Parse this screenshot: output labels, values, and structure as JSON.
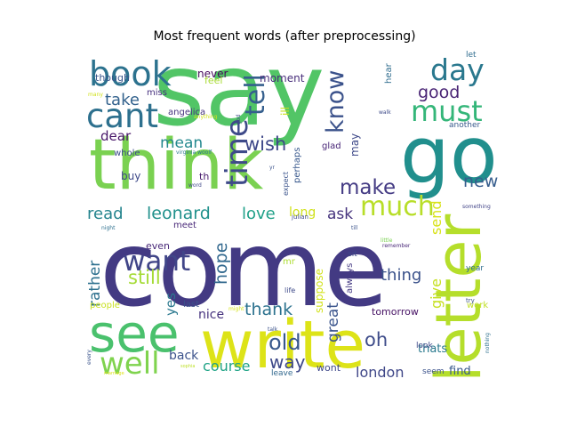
{
  "chart_data": {
    "type": "wordcloud",
    "title": "Most frequent words (after preprocessing)",
    "words": [
      {
        "text": "say",
        "color": "#52c566"
      },
      {
        "text": "come",
        "color": "#433a83"
      },
      {
        "text": "think",
        "color": "#7ad151"
      },
      {
        "text": "go",
        "color": "#218f8d"
      },
      {
        "text": "write",
        "color": "#dde318"
      },
      {
        "text": "letter",
        "color": "#b5de2b"
      },
      {
        "text": "see",
        "color": "#4ac16d"
      },
      {
        "text": "book",
        "color": "#2c728e"
      },
      {
        "text": "cant",
        "color": "#2d708e"
      },
      {
        "text": "know",
        "color": "#3b528b"
      },
      {
        "text": "day",
        "color": "#2a788e"
      },
      {
        "text": "must",
        "color": "#34b679"
      },
      {
        "text": "time",
        "color": "#3e4a89"
      },
      {
        "text": "tell",
        "color": "#355f8d"
      },
      {
        "text": "much",
        "color": "#b8de29"
      },
      {
        "text": "make",
        "color": "#443b84"
      },
      {
        "text": "want",
        "color": "#404588"
      },
      {
        "text": "well",
        "color": "#7fd34e"
      },
      {
        "text": "good",
        "color": "#482374"
      },
      {
        "text": "mean",
        "color": "#23888e"
      },
      {
        "text": "wish",
        "color": "#3f4889"
      },
      {
        "text": "take",
        "color": "#33628d"
      },
      {
        "text": "leonard",
        "color": "#21918c"
      },
      {
        "text": "read",
        "color": "#25848e"
      },
      {
        "text": "love",
        "color": "#1fa088"
      },
      {
        "text": "new",
        "color": "#365d8d"
      },
      {
        "text": "ask",
        "color": "#45337d"
      },
      {
        "text": "hope",
        "color": "#31688e"
      },
      {
        "text": "still",
        "color": "#a5db36"
      },
      {
        "text": "old",
        "color": "#38588c"
      },
      {
        "text": "thank",
        "color": "#2c728e"
      },
      {
        "text": "oh",
        "color": "#3e4c8a"
      },
      {
        "text": "way",
        "color": "#3e4989"
      },
      {
        "text": "course",
        "color": "#20a386"
      },
      {
        "text": "london",
        "color": "#3f4788"
      },
      {
        "text": "great",
        "color": "#3a548c"
      },
      {
        "text": "thing",
        "color": "#3b528b"
      },
      {
        "text": "rather",
        "color": "#2d708e"
      },
      {
        "text": "send",
        "color": "#d8e219"
      },
      {
        "text": "give",
        "color": "#c5e021"
      },
      {
        "text": "long",
        "color": "#d0e11c"
      },
      {
        "text": "suppose",
        "color": "#d2e21b"
      },
      {
        "text": "dear",
        "color": "#481769"
      },
      {
        "text": "yes",
        "color": "#2a788e"
      },
      {
        "text": "nice",
        "color": "#46327e"
      },
      {
        "text": "back",
        "color": "#3b528b"
      },
      {
        "text": "thats",
        "color": "#29798e"
      },
      {
        "text": "tomorrow",
        "color": "#471365"
      },
      {
        "text": "find",
        "color": "#38598c"
      },
      {
        "text": "wont",
        "color": "#3f4889"
      },
      {
        "text": "moment",
        "color": "#472c7a"
      },
      {
        "text": "never",
        "color": "#46085c"
      },
      {
        "text": "feel",
        "color": "#a8db34"
      },
      {
        "text": "though",
        "color": "#39568c"
      },
      {
        "text": "miss",
        "color": "#46307e"
      },
      {
        "text": "angelica",
        "color": "#46337f"
      },
      {
        "text": "buy",
        "color": "#3e4989"
      },
      {
        "text": "whole",
        "color": "#3d4e8a"
      },
      {
        "text": "even",
        "color": "#482878"
      },
      {
        "text": "meet",
        "color": "#482878"
      },
      {
        "text": "may",
        "color": "#3e4989"
      },
      {
        "text": "glad",
        "color": "#482677"
      },
      {
        "text": "perhaps",
        "color": "#38588c"
      },
      {
        "text": "expect",
        "color": "#3a538b"
      },
      {
        "text": "always",
        "color": "#443983"
      },
      {
        "text": "sit",
        "color": "#3e4989"
      },
      {
        "text": "people",
        "color": "#c8e020"
      },
      {
        "text": "last",
        "color": "#3b528b"
      },
      {
        "text": "hear",
        "color": "#2f6c8e"
      },
      {
        "text": "let",
        "color": "#2f6c8e"
      },
      {
        "text": "another",
        "color": "#38598c"
      },
      {
        "text": "year",
        "color": "#2e6e8e"
      },
      {
        "text": "work",
        "color": "#c0df25"
      },
      {
        "text": "seem",
        "color": "#3b528b"
      },
      {
        "text": "look",
        "color": "#3f4889"
      },
      {
        "text": "leave",
        "color": "#31688e"
      },
      {
        "text": "mr",
        "color": "#addc30"
      },
      {
        "text": "life",
        "color": "#3e4a89"
      },
      {
        "text": "th",
        "color": "#481b6d"
      },
      {
        "text": "ill",
        "color": "#cae11f"
      },
      {
        "text": "julian",
        "color": "#3e4989"
      },
      {
        "text": "something",
        "color": "#414487"
      },
      {
        "text": "remember",
        "color": "#482677"
      },
      {
        "text": "little",
        "color": "#7ad151"
      },
      {
        "text": "till",
        "color": "#3a538b"
      },
      {
        "text": "try",
        "color": "#3b528b"
      },
      {
        "text": "might",
        "color": "#d5e21a"
      },
      {
        "text": "talk",
        "color": "#3b528b"
      },
      {
        "text": "virginia woolf",
        "color": "#2a788e"
      },
      {
        "text": "word",
        "color": "#3f4889"
      },
      {
        "text": "night",
        "color": "#2d708e"
      },
      {
        "text": "many",
        "color": "#d0e11c"
      },
      {
        "text": "anything",
        "color": "#d2e21b"
      },
      {
        "text": "walk",
        "color": "#3e4a89"
      },
      {
        "text": "every",
        "color": "#3a538b"
      },
      {
        "text": "sophia",
        "color": "#bddf26"
      },
      {
        "text": "nothing",
        "color": "#2d708e"
      },
      {
        "text": "god",
        "color": "#3e4989"
      },
      {
        "text": "yr",
        "color": "#3b528b"
      },
      {
        "text": "marriage",
        "color": "#dde318"
      }
    ]
  }
}
